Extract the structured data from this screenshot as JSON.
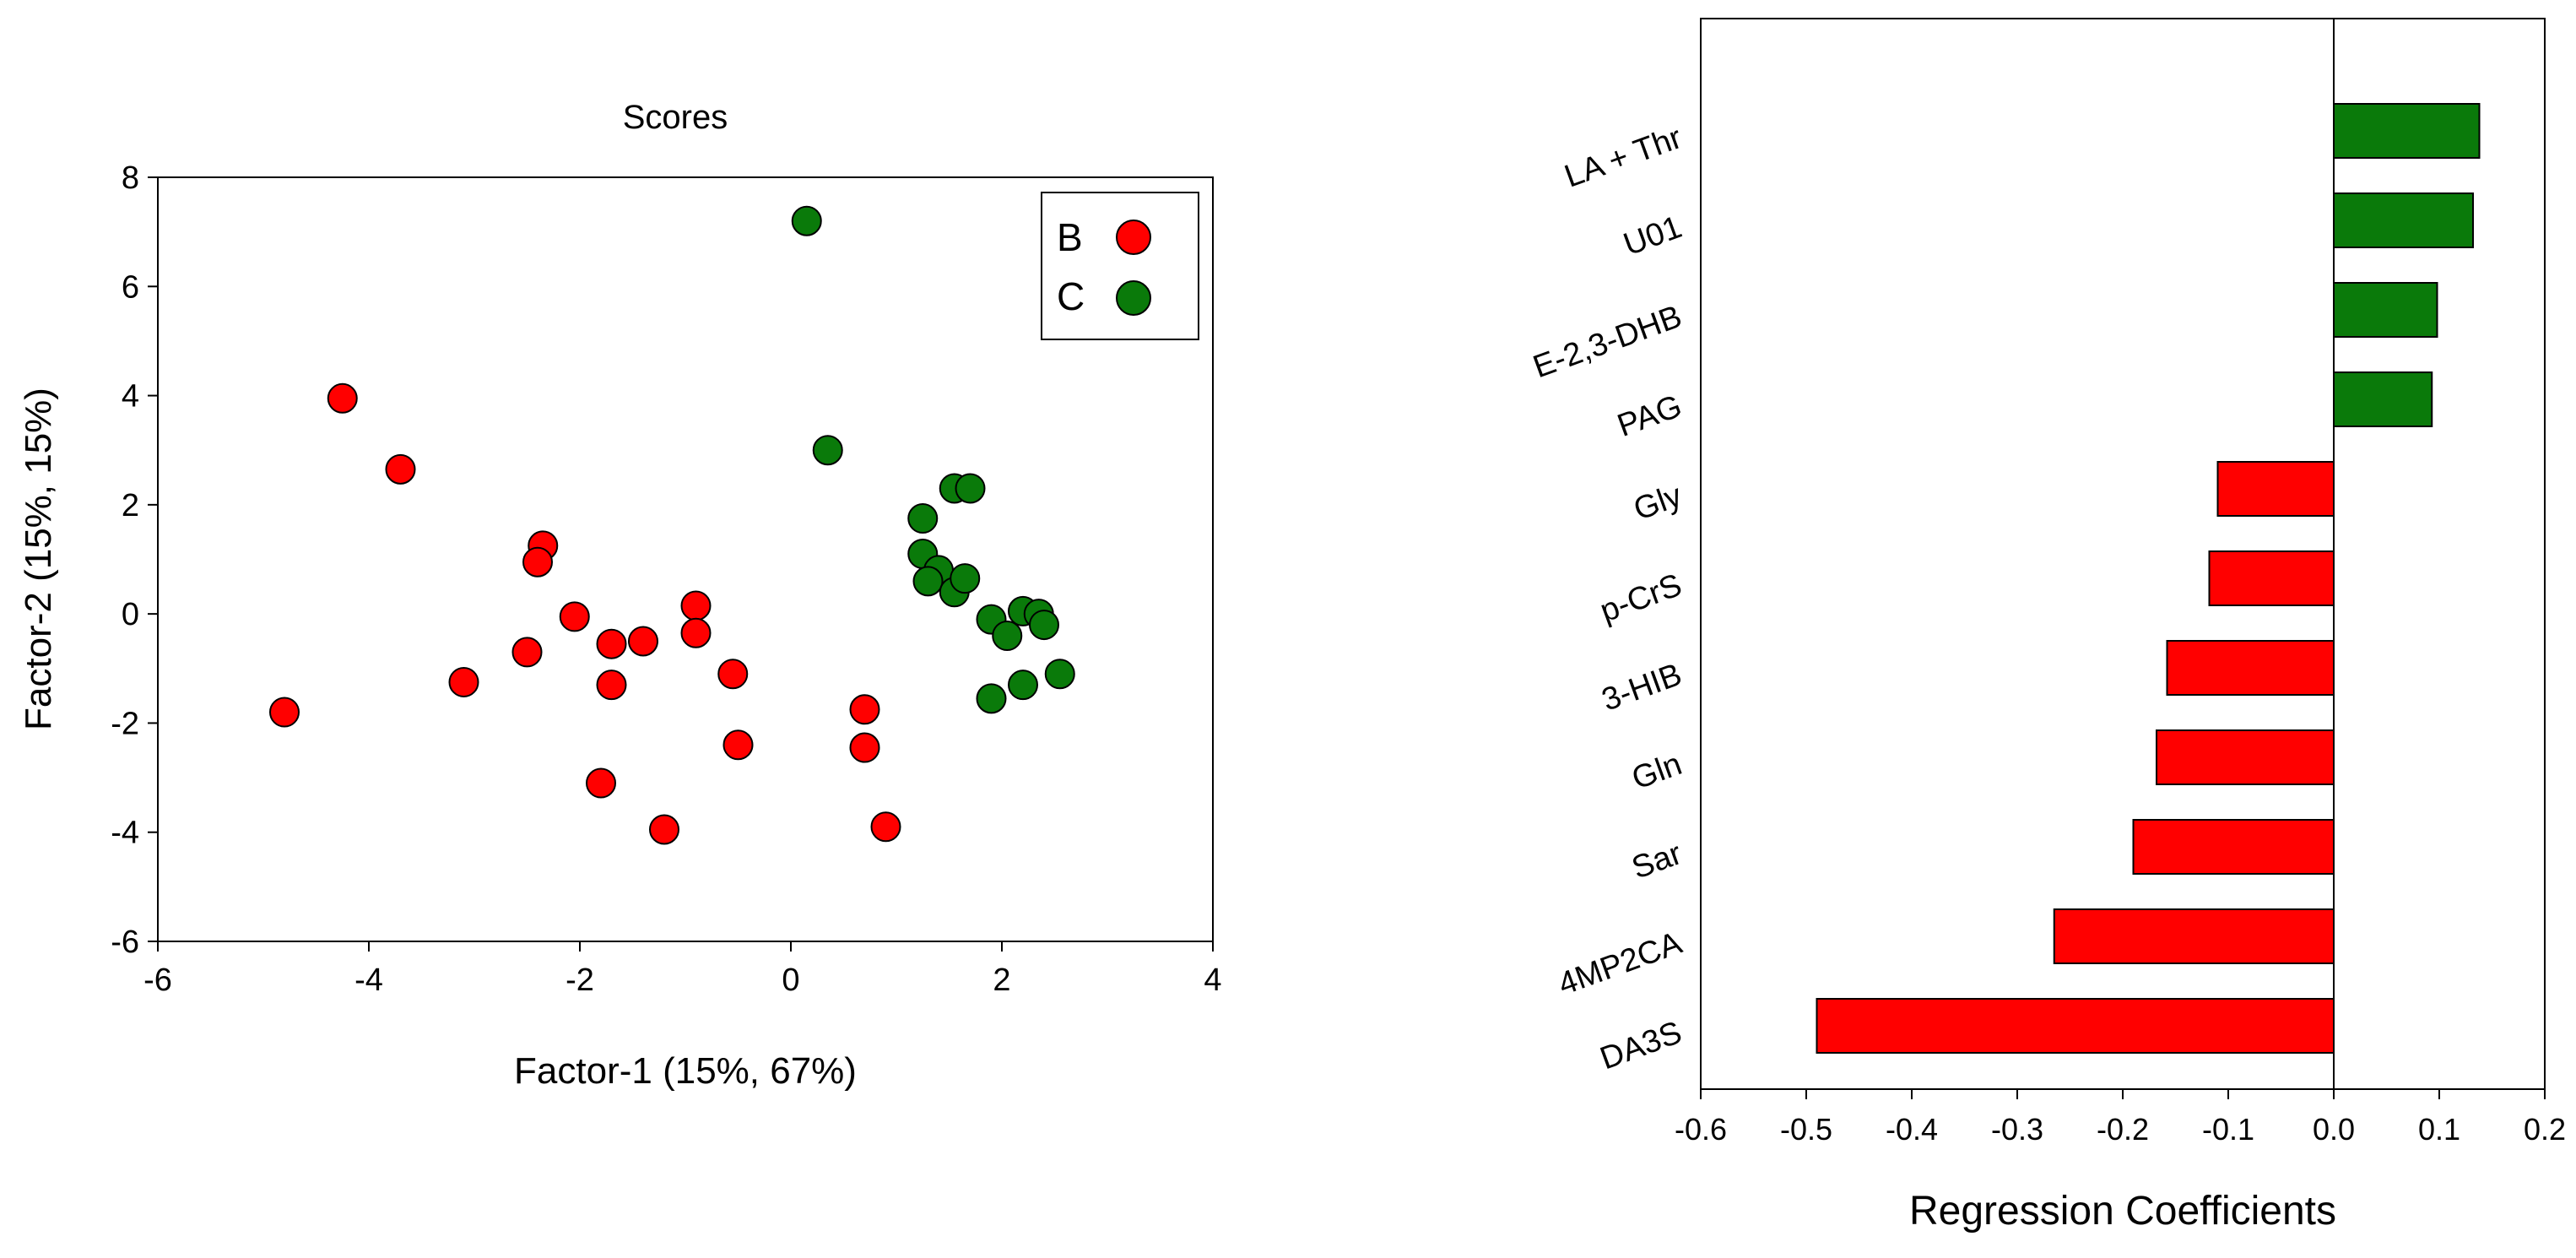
{
  "colors": {
    "group_b": "#ff0000",
    "group_c": "#0a7a0a",
    "axis": "#000000"
  },
  "chart_data": [
    {
      "type": "scatter",
      "title": "Scores",
      "xlabel": "Factor-1 (15%, 67%)",
      "ylabel": "Factor-2 (15%, 15%)",
      "xlim": [
        -6,
        4
      ],
      "ylim": [
        -6,
        8
      ],
      "xticks": [
        "-6",
        "-4",
        "-2",
        "0",
        "2",
        "4"
      ],
      "yticks": [
        "-6",
        "-4",
        "-2",
        "0",
        "2",
        "4",
        "6",
        "8"
      ],
      "xtick_values": [
        -6,
        -4,
        -2,
        0,
        2,
        4
      ],
      "ytick_values": [
        -6,
        -4,
        -2,
        0,
        2,
        4,
        6,
        8
      ],
      "legend": [
        {
          "label": "B",
          "color": "#ff0000"
        },
        {
          "label": "C",
          "color": "#0a7a0a"
        }
      ],
      "legend_position": "top-right",
      "series": [
        {
          "name": "B",
          "color": "#ff0000",
          "points": [
            [
              -4.8,
              -1.8
            ],
            [
              -4.25,
              3.95
            ],
            [
              -3.7,
              2.65
            ],
            [
              -3.1,
              -1.25
            ],
            [
              -2.5,
              -0.7
            ],
            [
              -2.35,
              1.25
            ],
            [
              -2.4,
              0.95
            ],
            [
              -2.05,
              -0.05
            ],
            [
              -1.7,
              -0.55
            ],
            [
              -1.7,
              -1.3
            ],
            [
              -1.4,
              -0.5
            ],
            [
              -1.8,
              -3.1
            ],
            [
              -1.2,
              -3.95
            ],
            [
              -0.9,
              0.15
            ],
            [
              -0.9,
              -0.35
            ],
            [
              -0.55,
              -1.1
            ],
            [
              -0.5,
              -2.4
            ],
            [
              0.7,
              -1.75
            ],
            [
              0.7,
              -2.45
            ],
            [
              0.9,
              -3.9
            ]
          ]
        },
        {
          "name": "C",
          "color": "#0a7a0a",
          "points": [
            [
              0.15,
              7.2
            ],
            [
              0.35,
              3.0
            ],
            [
              1.55,
              2.3
            ],
            [
              1.7,
              2.3
            ],
            [
              1.25,
              1.75
            ],
            [
              1.25,
              1.1
            ],
            [
              1.4,
              0.8
            ],
            [
              1.3,
              0.6
            ],
            [
              1.55,
              0.4
            ],
            [
              1.65,
              0.65
            ],
            [
              1.9,
              -0.1
            ],
            [
              2.05,
              -0.4
            ],
            [
              2.2,
              0.05
            ],
            [
              2.35,
              0.0
            ],
            [
              2.4,
              -0.2
            ],
            [
              2.2,
              -1.3
            ],
            [
              1.9,
              -1.55
            ],
            [
              2.55,
              -1.1
            ]
          ]
        }
      ]
    },
    {
      "type": "bar",
      "orientation": "horizontal",
      "title": "",
      "xlabel": "Regression Coefficients",
      "ylabel": "",
      "xlim": [
        -0.6,
        0.2
      ],
      "xticks": [
        "-0.6",
        "-0.5",
        "-0.4",
        "-0.3",
        "-0.2",
        "-0.1",
        "0.0",
        "0.1",
        "0.2"
      ],
      "xtick_values": [
        -0.6,
        -0.5,
        -0.4,
        -0.3,
        -0.2,
        -0.1,
        0.0,
        0.1,
        0.2
      ],
      "categories": [
        "LA + Thr",
        "U01",
        "E-2,3-DHB",
        "PAG",
        "Gly",
        "p-CrS",
        "3-HIB",
        "Gln",
        "Sar",
        "4MP2CA",
        "DA3S"
      ],
      "values": [
        0.138,
        0.132,
        0.098,
        0.093,
        -0.11,
        -0.118,
        -0.158,
        -0.168,
        -0.19,
        -0.265,
        -0.49
      ]
    }
  ]
}
